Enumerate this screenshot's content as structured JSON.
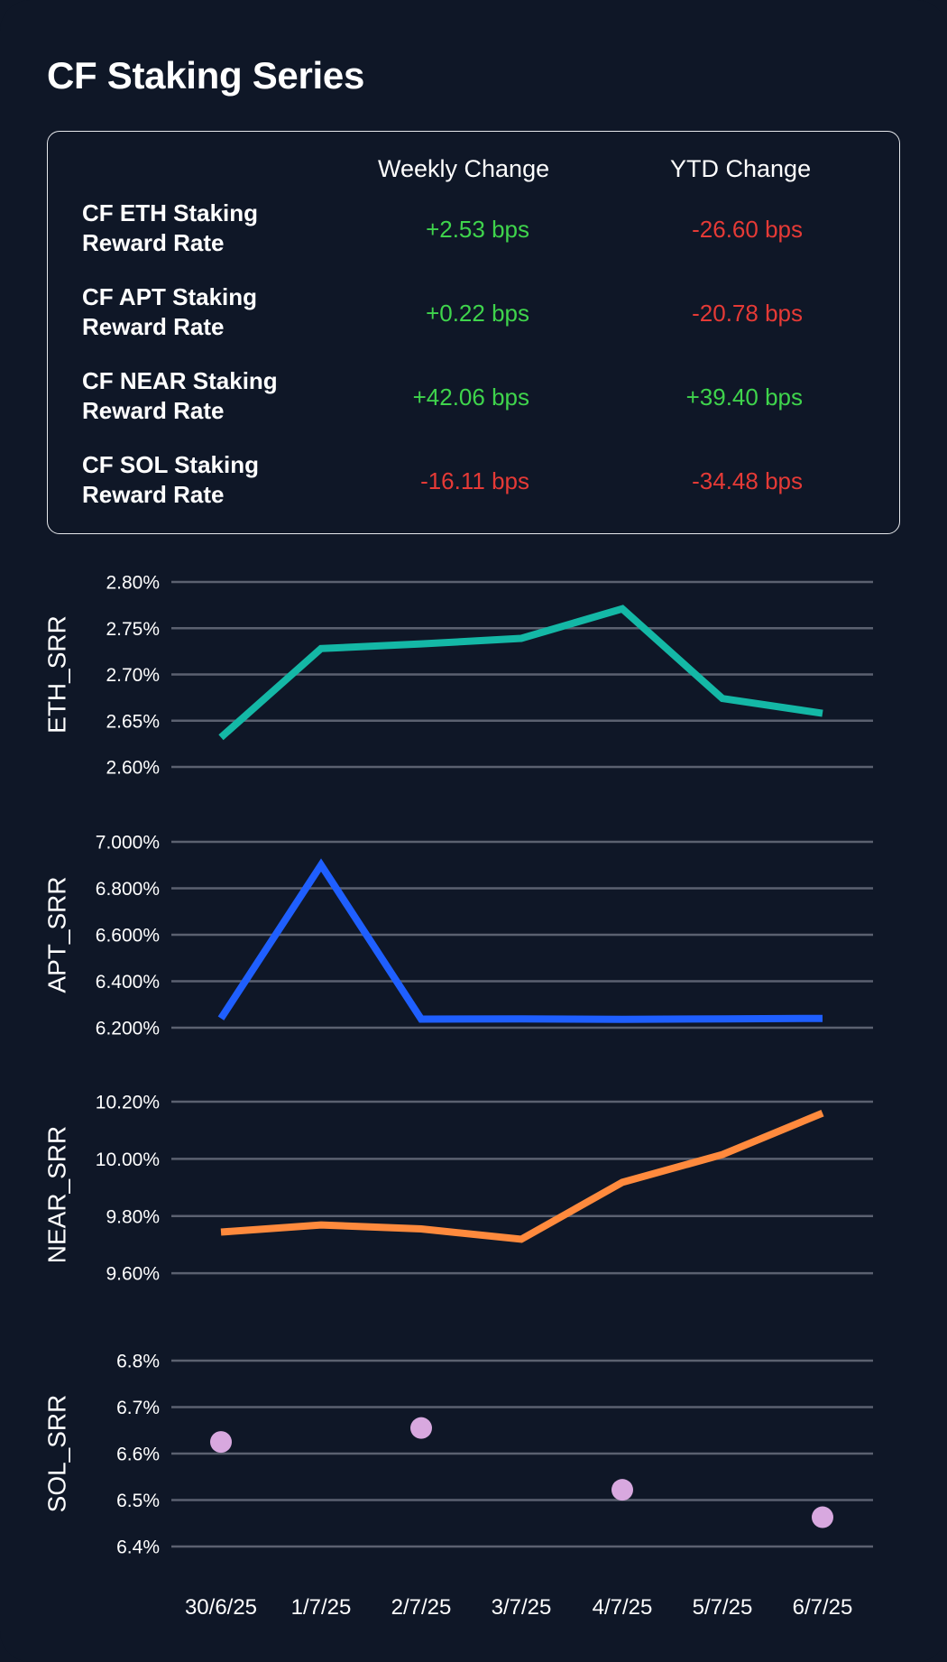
{
  "title": "CF Staking Series",
  "table": {
    "headers": {
      "weekly": "Weekly Change",
      "ytd": "YTD Change"
    },
    "rows": [
      {
        "label_line1": "CF ETH Staking",
        "label_line2": "Reward Rate",
        "weekly": "+2.53 bps",
        "weekly_sign": "pos",
        "ytd": "-26.60 bps",
        "ytd_sign": "neg"
      },
      {
        "label_line1": "CF APT Staking",
        "label_line2": "Reward Rate",
        "weekly": "+0.22 bps",
        "weekly_sign": "pos",
        "ytd": "-20.78 bps",
        "ytd_sign": "neg"
      },
      {
        "label_line1": "CF NEAR Staking",
        "label_line2": "Reward Rate",
        "weekly": "+42.06 bps",
        "weekly_sign": "pos",
        "ytd": "+39.40 bps",
        "ytd_sign": "pos"
      },
      {
        "label_line1": "CF SOL Staking",
        "label_line2": "Reward Rate",
        "weekly": "-16.11 bps",
        "weekly_sign": "neg",
        "ytd": "-34.48 bps",
        "ytd_sign": "neg"
      }
    ]
  },
  "colors": {
    "background": "#0f1727",
    "positive": "#3fd44c",
    "negative": "#e53a36",
    "gridline": "#5b6170",
    "eth": "#14b8a6",
    "apt": "#1f5fff",
    "near": "#ff8a3d",
    "sol": "#d8a8df"
  },
  "chart_data": [
    {
      "type": "line",
      "name": "eth",
      "ylabel": "ETH_SRR",
      "color": "#14b8a6",
      "x": [
        "30/6/25",
        "1/7/25",
        "2/7/25",
        "3/7/25",
        "4/7/25",
        "5/7/25",
        "6/7/25"
      ],
      "values": [
        2.632,
        2.728,
        2.733,
        2.739,
        2.771,
        2.674,
        2.658
      ],
      "ylim": [
        2.6,
        2.8
      ],
      "yticks": [
        2.6,
        2.65,
        2.7,
        2.75,
        2.8
      ],
      "ytick_labels": [
        "2.60%",
        "2.65%",
        "2.70%",
        "2.75%",
        "2.80%"
      ]
    },
    {
      "type": "line",
      "name": "apt",
      "ylabel": "APT_SRR",
      "color": "#1f5fff",
      "x": [
        "30/6/25",
        "1/7/25",
        "2/7/25",
        "3/7/25",
        "4/7/25",
        "5/7/25",
        "6/7/25"
      ],
      "values": [
        6.24,
        6.9,
        6.237,
        6.238,
        6.236,
        6.238,
        6.24
      ],
      "ylim": [
        6.2,
        7.0
      ],
      "yticks": [
        6.2,
        6.4,
        6.6,
        6.8,
        7.0
      ],
      "ytick_labels": [
        "6.200%",
        "6.400%",
        "6.600%",
        "6.800%",
        "7.000%"
      ]
    },
    {
      "type": "line",
      "name": "near",
      "ylabel": "NEAR_SRR",
      "color": "#ff8a3d",
      "x": [
        "30/6/25",
        "1/7/25",
        "2/7/25",
        "3/7/25",
        "4/7/25",
        "5/7/25",
        "6/7/25"
      ],
      "values": [
        9.744,
        9.769,
        9.755,
        9.719,
        9.918,
        10.015,
        10.16
      ],
      "ylim": [
        9.55,
        10.2
      ],
      "yticks": [
        9.6,
        9.8,
        10.0,
        10.2
      ],
      "ytick_labels": [
        "9.60%",
        "9.80%",
        "10.00%",
        "10.20%"
      ]
    },
    {
      "type": "scatter",
      "name": "sol",
      "ylabel": "SOL_SRR",
      "color": "#d8a8df",
      "x": [
        "30/6/25",
        "1/7/25",
        "2/7/25",
        "3/7/25",
        "4/7/25",
        "5/7/25",
        "6/7/25"
      ],
      "points": [
        {
          "x": "30/6/25",
          "y": 6.625
        },
        {
          "x": "2/7/25",
          "y": 6.655
        },
        {
          "x": "4/7/25",
          "y": 6.522
        },
        {
          "x": "6/7/25",
          "y": 6.463
        }
      ],
      "ylim": [
        6.4,
        6.8
      ],
      "yticks": [
        6.4,
        6.5,
        6.6,
        6.7,
        6.8
      ],
      "ytick_labels": [
        "6.4%",
        "6.5%",
        "6.6%",
        "6.7%",
        "6.8%"
      ],
      "xtick_labels": [
        "30/6/25",
        "1/7/25",
        "2/7/25",
        "3/7/25",
        "4/7/25",
        "5/7/25",
        "6/7/25"
      ]
    }
  ]
}
